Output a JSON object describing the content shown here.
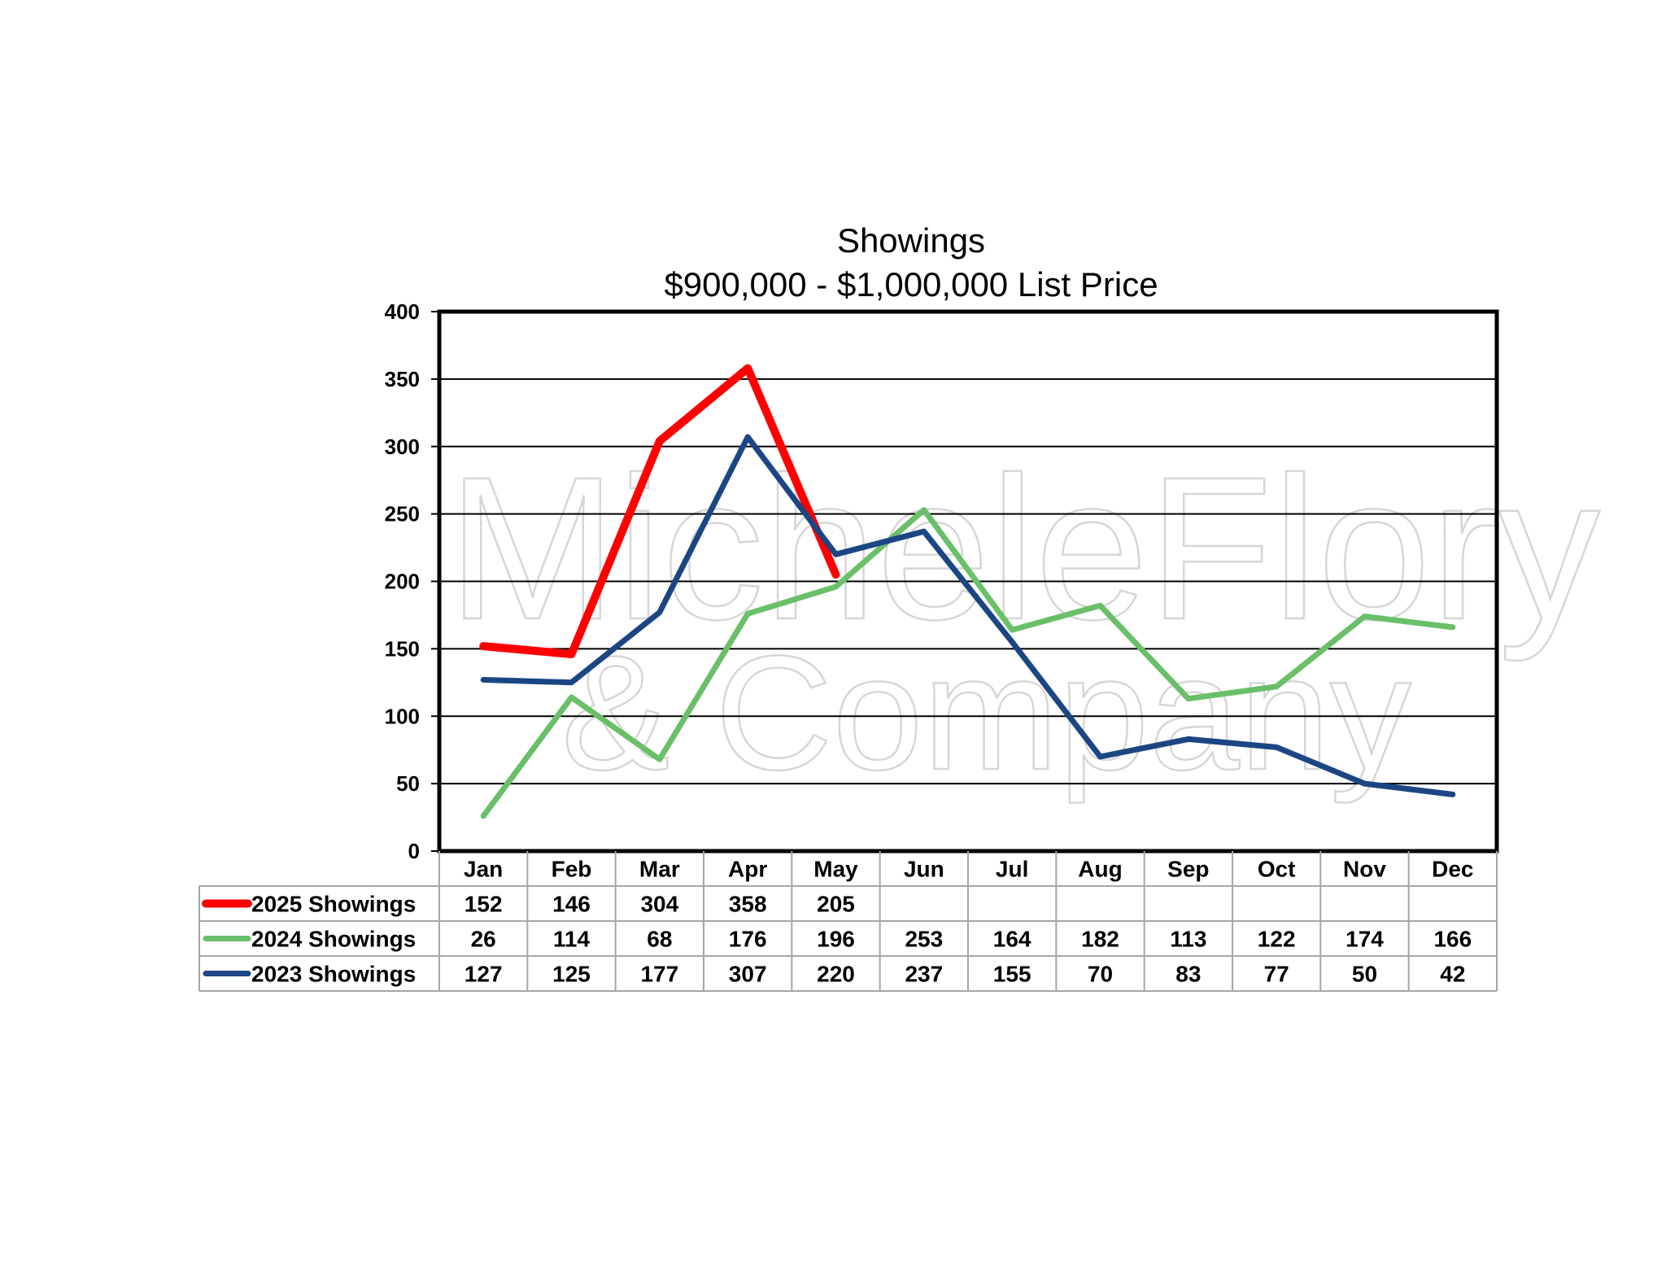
{
  "watermark": {
    "line1": "MicheleFlory",
    "line2": "& Company"
  },
  "chart_data": {
    "type": "line",
    "title": "Showings",
    "subtitle": "$900,000 - $1,000,000 List Price",
    "categories": [
      "Jan",
      "Feb",
      "Mar",
      "Apr",
      "May",
      "Jun",
      "Jul",
      "Aug",
      "Sep",
      "Oct",
      "Nov",
      "Dec"
    ],
    "y_ticks": [
      "0",
      "50",
      "100",
      "150",
      "200",
      "250",
      "300",
      "350",
      "400"
    ],
    "ylim": [
      0,
      400
    ],
    "grid": true,
    "legend_placement": "data table below chart",
    "series": [
      {
        "name": "2025 Showings",
        "color": "#ff0000",
        "values": [
          152,
          146,
          304,
          358,
          205,
          null,
          null,
          null,
          null,
          null,
          null,
          null
        ]
      },
      {
        "name": "2024 Showings",
        "color": "#6abf69",
        "values": [
          26,
          114,
          68,
          176,
          196,
          253,
          164,
          182,
          113,
          122,
          174,
          166
        ]
      },
      {
        "name": "2023 Showings",
        "color": "#1b4683",
        "values": [
          127,
          125,
          177,
          307,
          220,
          237,
          155,
          70,
          83,
          77,
          50,
          42
        ]
      }
    ]
  }
}
